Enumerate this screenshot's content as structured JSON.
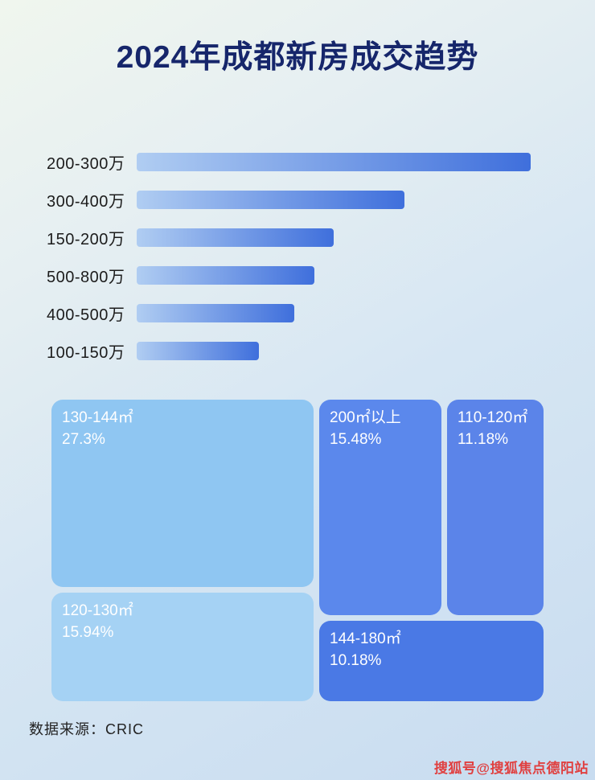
{
  "page": {
    "title": "2024年成都新房成交趋势",
    "footer": "数据来源：CRIC",
    "watermark": "搜狐号@搜狐焦点德阳站"
  },
  "colors": {
    "title_text": "#16266b",
    "bar_gradient_start": "#b0cdf2",
    "bar_gradient_end": "#3f6fdc",
    "watermark_red": "#e04040"
  },
  "chart_data": [
    {
      "type": "bar",
      "orientation": "horizontal",
      "title": "2024年成都新房成交趋势",
      "categories": [
        "200-300万",
        "300-400万",
        "150-200万",
        "500-800万",
        "400-500万",
        "100-150万"
      ],
      "values": [
        100,
        68,
        50,
        45,
        40,
        31
      ],
      "values_unit": "relative length, percent of longest bar (no numeric axis shown)",
      "xlabel": "",
      "ylabel": "",
      "grid": false,
      "legend": false
    },
    {
      "type": "treemap",
      "title": "",
      "tiles": [
        {
          "label": "130-144㎡",
          "value_label": "27.3%",
          "value": 27.3,
          "color": "#8fc6f2"
        },
        {
          "label": "200㎡以上",
          "value_label": "15.48%",
          "value": 15.48,
          "color": "#5b88ec"
        },
        {
          "label": "110-120㎡",
          "value_label": "11.18%",
          "value": 11.18,
          "color": "#5b84e9"
        },
        {
          "label": "120-130㎡",
          "value_label": "15.94%",
          "value": 15.94,
          "color": "#a5d2f4"
        },
        {
          "label": "144-180㎡",
          "value_label": "10.18%",
          "value": 10.18,
          "color": "#4a79e5"
        }
      ]
    }
  ]
}
